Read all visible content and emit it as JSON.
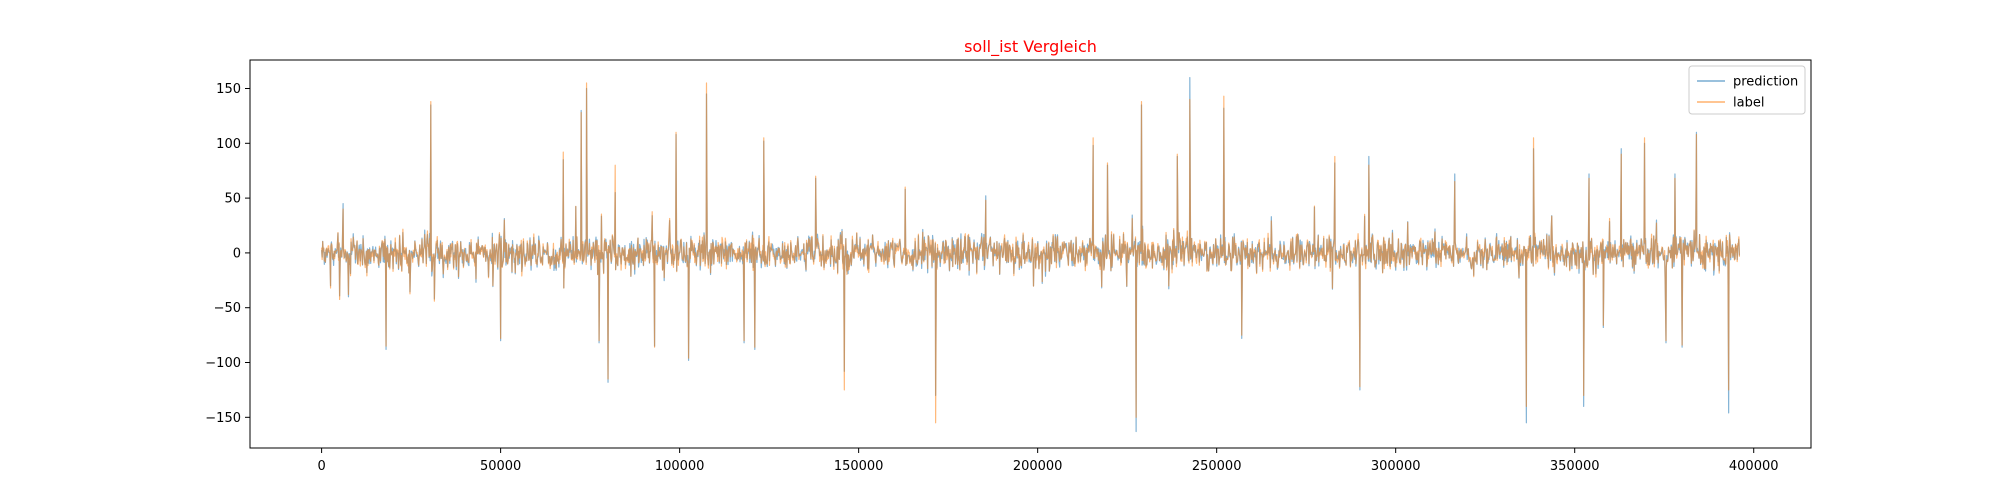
{
  "chart_data": {
    "type": "line",
    "title": "soll_ist Vergleich",
    "title_color": "#ff0000",
    "xlabel": "",
    "ylabel": "",
    "xlim": [
      -20000,
      416000
    ],
    "ylim": [
      -178,
      176
    ],
    "xticks": [
      0,
      50000,
      100000,
      150000,
      200000,
      250000,
      300000,
      350000,
      400000
    ],
    "yticks": [
      -150,
      -100,
      -50,
      0,
      50,
      100,
      150
    ],
    "grid": false,
    "legend_position": "upper right",
    "x_extent": [
      0,
      396000
    ],
    "series": [
      {
        "name": "prediction",
        "color": "#1f77b4",
        "baseline_amplitude": 22,
        "spikes": [
          {
            "x": 2500,
            "y": -30
          },
          {
            "x": 6000,
            "y": 45
          },
          {
            "x": 7500,
            "y": -40
          },
          {
            "x": 18000,
            "y": -88
          },
          {
            "x": 30500,
            "y": 135
          },
          {
            "x": 31500,
            "y": -42
          },
          {
            "x": 50000,
            "y": -80
          },
          {
            "x": 67500,
            "y": 85
          },
          {
            "x": 72500,
            "y": 130
          },
          {
            "x": 74000,
            "y": 150
          },
          {
            "x": 77500,
            "y": -82
          },
          {
            "x": 80000,
            "y": -118
          },
          {
            "x": 82000,
            "y": 55
          },
          {
            "x": 93000,
            "y": -85
          },
          {
            "x": 99000,
            "y": 108
          },
          {
            "x": 102500,
            "y": -98
          },
          {
            "x": 107500,
            "y": 145
          },
          {
            "x": 118000,
            "y": -82
          },
          {
            "x": 121000,
            "y": -88
          },
          {
            "x": 123500,
            "y": 102
          },
          {
            "x": 138000,
            "y": 68
          },
          {
            "x": 146000,
            "y": -108
          },
          {
            "x": 163000,
            "y": 58
          },
          {
            "x": 171500,
            "y": -130
          },
          {
            "x": 185500,
            "y": 52
          },
          {
            "x": 215500,
            "y": 98
          },
          {
            "x": 219500,
            "y": 80
          },
          {
            "x": 227500,
            "y": -163
          },
          {
            "x": 229000,
            "y": 135
          },
          {
            "x": 239000,
            "y": 88
          },
          {
            "x": 242500,
            "y": 160
          },
          {
            "x": 252000,
            "y": 132
          },
          {
            "x": 257000,
            "y": -78
          },
          {
            "x": 283000,
            "y": 82
          },
          {
            "x": 290000,
            "y": -125
          },
          {
            "x": 292500,
            "y": 88
          },
          {
            "x": 316500,
            "y": 72
          },
          {
            "x": 336500,
            "y": -155
          },
          {
            "x": 338500,
            "y": 95
          },
          {
            "x": 352500,
            "y": -140
          },
          {
            "x": 354000,
            "y": 72
          },
          {
            "x": 358000,
            "y": -68
          },
          {
            "x": 363000,
            "y": 95
          },
          {
            "x": 369500,
            "y": 100
          },
          {
            "x": 375500,
            "y": -82
          },
          {
            "x": 378000,
            "y": 72
          },
          {
            "x": 380000,
            "y": -86
          },
          {
            "x": 384000,
            "y": 110
          },
          {
            "x": 393000,
            "y": -146
          }
        ]
      },
      {
        "name": "label",
        "color": "#ff7f0e",
        "baseline_amplitude": 22,
        "spikes": [
          {
            "x": 2500,
            "y": -32
          },
          {
            "x": 6000,
            "y": 40
          },
          {
            "x": 7500,
            "y": -38
          },
          {
            "x": 18000,
            "y": -85
          },
          {
            "x": 30500,
            "y": 138
          },
          {
            "x": 31500,
            "y": -44
          },
          {
            "x": 50000,
            "y": -78
          },
          {
            "x": 67500,
            "y": 92
          },
          {
            "x": 72500,
            "y": 128
          },
          {
            "x": 74000,
            "y": 155
          },
          {
            "x": 77500,
            "y": -80
          },
          {
            "x": 80000,
            "y": -115
          },
          {
            "x": 82000,
            "y": 80
          },
          {
            "x": 93000,
            "y": -86
          },
          {
            "x": 99000,
            "y": 110
          },
          {
            "x": 102500,
            "y": -96
          },
          {
            "x": 107500,
            "y": 155
          },
          {
            "x": 118000,
            "y": -80
          },
          {
            "x": 121000,
            "y": -86
          },
          {
            "x": 123500,
            "y": 105
          },
          {
            "x": 138000,
            "y": 70
          },
          {
            "x": 146000,
            "y": -125
          },
          {
            "x": 163000,
            "y": 60
          },
          {
            "x": 171500,
            "y": -155
          },
          {
            "x": 185500,
            "y": 48
          },
          {
            "x": 215500,
            "y": 105
          },
          {
            "x": 219500,
            "y": 82
          },
          {
            "x": 227500,
            "y": -150
          },
          {
            "x": 229000,
            "y": 138
          },
          {
            "x": 239000,
            "y": 90
          },
          {
            "x": 242500,
            "y": 140
          },
          {
            "x": 252000,
            "y": 143
          },
          {
            "x": 257000,
            "y": -75
          },
          {
            "x": 283000,
            "y": 88
          },
          {
            "x": 290000,
            "y": -122
          },
          {
            "x": 292500,
            "y": 80
          },
          {
            "x": 316500,
            "y": 65
          },
          {
            "x": 336500,
            "y": -140
          },
          {
            "x": 338500,
            "y": 105
          },
          {
            "x": 352500,
            "y": -130
          },
          {
            "x": 354000,
            "y": 68
          },
          {
            "x": 358000,
            "y": -66
          },
          {
            "x": 363000,
            "y": 90
          },
          {
            "x": 369500,
            "y": 105
          },
          {
            "x": 375500,
            "y": -80
          },
          {
            "x": 378000,
            "y": 68
          },
          {
            "x": 380000,
            "y": -84
          },
          {
            "x": 384000,
            "y": 108
          },
          {
            "x": 393000,
            "y": -125
          }
        ]
      }
    ]
  }
}
